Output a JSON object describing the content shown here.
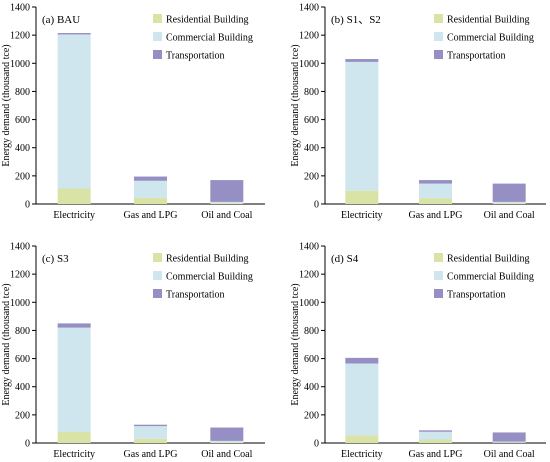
{
  "legend": {
    "residential": "Residential Building",
    "commercial": "Commercial Building",
    "transportation": "Transportation"
  },
  "colors": {
    "residential": "#d9e3a5",
    "commercial": "#cfe6ee",
    "transportation": "#958fc4",
    "axis": "#000000"
  },
  "chart_data": [
    {
      "type": "bar",
      "stacked": true,
      "title": "(a) BAU",
      "ylabel": "Energy demand (thousand  tce)",
      "ylim": [
        0,
        1400
      ],
      "yticks": [
        "0",
        "200",
        "400",
        "600",
        "800",
        "1000",
        "1200",
        "1400"
      ],
      "categories": [
        "Electricity",
        "Gas and LPG",
        "Oil and Coal"
      ],
      "legend_position": "top-right",
      "series": [
        {
          "key": "residential",
          "values": [
            110,
            45,
            5
          ]
        },
        {
          "key": "commercial",
          "values": [
            1095,
            120,
            10
          ]
        },
        {
          "key": "transportation",
          "values": [
            10,
            30,
            155
          ]
        }
      ]
    },
    {
      "type": "bar",
      "stacked": true,
      "title": "(b) S1、S2",
      "ylabel": "Energy demand (thousand  tce)",
      "ylim": [
        0,
        1400
      ],
      "yticks": [
        "0",
        "200",
        "400",
        "600",
        "800",
        "1000",
        "1200",
        "1400"
      ],
      "categories": [
        "Electricity",
        "Gas and LPG",
        "Oil and Coal"
      ],
      "legend_position": "top-right",
      "series": [
        {
          "key": "residential",
          "values": [
            95,
            40,
            5
          ]
        },
        {
          "key": "commercial",
          "values": [
            915,
            105,
            10
          ]
        },
        {
          "key": "transportation",
          "values": [
            20,
            25,
            130
          ]
        }
      ]
    },
    {
      "type": "bar",
      "stacked": true,
      "title": "(c) S3",
      "ylabel": "Energy demand (thousand  tce)",
      "ylim": [
        0,
        1400
      ],
      "yticks": [
        "0",
        "200",
        "400",
        "600",
        "800",
        "1000",
        "1200",
        "1400"
      ],
      "categories": [
        "Electricity",
        "Gas and LPG",
        "Oil and Coal"
      ],
      "legend_position": "top-right",
      "series": [
        {
          "key": "residential",
          "values": [
            80,
            30,
            5
          ]
        },
        {
          "key": "commercial",
          "values": [
            740,
            90,
            10
          ]
        },
        {
          "key": "transportation",
          "values": [
            30,
            10,
            95
          ]
        }
      ]
    },
    {
      "type": "bar",
      "stacked": true,
      "title": "(d) S4",
      "ylabel": "Energy demand (thousand  tce)",
      "ylim": [
        0,
        1400
      ],
      "yticks": [
        "0",
        "200",
        "400",
        "600",
        "800",
        "1000",
        "1200",
        "1400"
      ],
      "categories": [
        "Electricity",
        "Gas and LPG",
        "Oil and Coal"
      ],
      "legend_position": "top-right",
      "series": [
        {
          "key": "residential",
          "values": [
            55,
            25,
            3
          ]
        },
        {
          "key": "commercial",
          "values": [
            510,
            55,
            7
          ]
        },
        {
          "key": "transportation",
          "values": [
            40,
            10,
            65
          ]
        }
      ]
    }
  ]
}
